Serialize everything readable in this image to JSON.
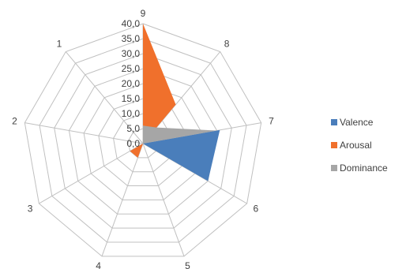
{
  "chart_data": {
    "type": "radar",
    "categories": [
      "9",
      "8",
      "7",
      "6",
      "5",
      "4",
      "3",
      "2",
      "1"
    ],
    "r_ticks": [
      "0,0",
      "5,0",
      "10,0",
      "15,0",
      "20,0",
      "25,0",
      "30,0",
      "35,0",
      "40,0"
    ],
    "rlim": [
      0,
      40
    ],
    "grid": true,
    "legend_position": "right",
    "series": [
      {
        "name": "Valence",
        "color": "#4a7ebb",
        "values": [
          0,
          0,
          26,
          25,
          0,
          0,
          0,
          0,
          0
        ]
      },
      {
        "name": "Arousal",
        "color": "#f0702c",
        "values": [
          40,
          17,
          0,
          0,
          0,
          5,
          5,
          0,
          0
        ]
      },
      {
        "name": "Dominance",
        "color": "#a6a6a6",
        "values": [
          6,
          7,
          25,
          0,
          15,
          0,
          0,
          12,
          0
        ]
      }
    ]
  }
}
